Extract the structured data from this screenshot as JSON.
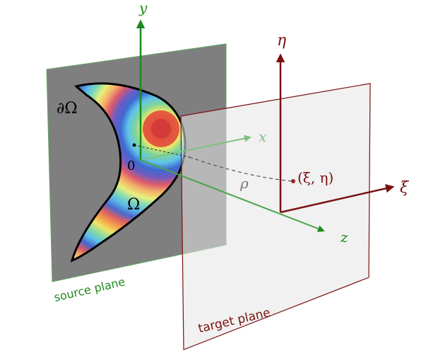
{
  "labels": {
    "y_axis": "y",
    "x_axis": "x",
    "z_axis": "z",
    "eta_axis": "η",
    "xi_axis": "ξ",
    "boundary": "∂Ω",
    "region": "Ω",
    "origin": "0",
    "rho": "ρ",
    "point": "(ξ, η)",
    "source_plane": "source plane",
    "target_plane": "target plane"
  },
  "colors": {
    "source_axes": "#1e8a1e",
    "target_axes": "#7a1010",
    "source_plane_fill": "#7f7f7f",
    "target_plane_fill": "#e6e6e6"
  }
}
